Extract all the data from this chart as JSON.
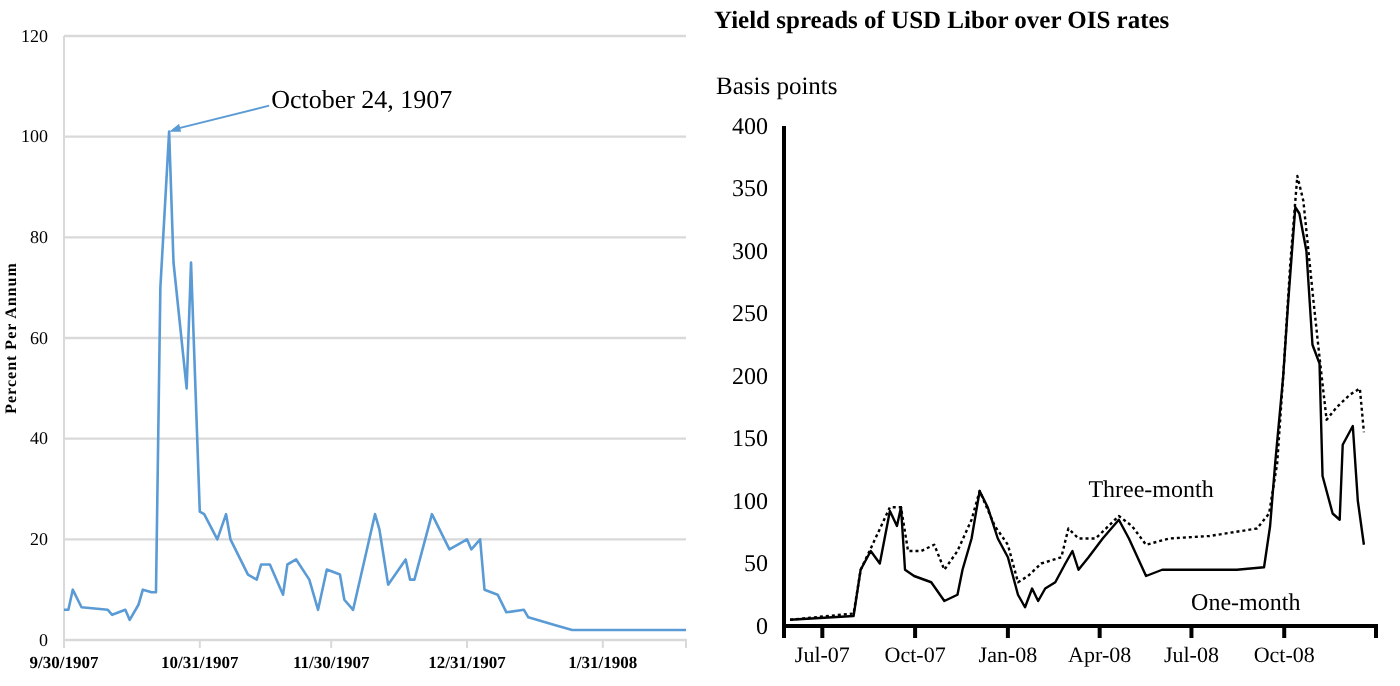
{
  "chart_data": [
    {
      "type": "line",
      "ylabel": "Percent Per Annum",
      "x": [
        "1907-09-30",
        "1907-10-01",
        "1907-10-02",
        "1907-10-04",
        "1907-10-10",
        "1907-10-11",
        "1907-10-14",
        "1907-10-15",
        "1907-10-17",
        "1907-10-18",
        "1907-10-20",
        "1907-10-21",
        "1907-10-22",
        "1907-10-24",
        "1907-10-25",
        "1907-10-28",
        "1907-10-29",
        "1907-10-31",
        "1907-11-01",
        "1907-11-04",
        "1907-11-06",
        "1907-11-07",
        "1907-11-11",
        "1907-11-13",
        "1907-11-14",
        "1907-11-16",
        "1907-11-19",
        "1907-11-20",
        "1907-11-22",
        "1907-11-25",
        "1907-11-27",
        "1907-11-29",
        "1907-12-02",
        "1907-12-03",
        "1907-12-05",
        "1907-12-10",
        "1907-12-11",
        "1907-12-13",
        "1907-12-17",
        "1907-12-18",
        "1907-12-19",
        "1907-12-23",
        "1907-12-27",
        "1907-12-31",
        "1908-01-01",
        "1908-01-03",
        "1908-01-04",
        "1908-01-07",
        "1908-01-09",
        "1908-01-13",
        "1908-01-14",
        "1908-01-20",
        "1908-01-24",
        "1908-02-19"
      ],
      "series": [
        {
          "color": "#5b9bd5",
          "values": [
            6,
            6,
            10,
            6.5,
            6,
            5,
            6,
            4,
            7,
            10,
            9.5,
            9.5,
            70,
            101,
            75,
            50,
            75,
            25.5,
            25,
            20,
            25,
            20,
            13,
            12,
            15,
            15,
            9,
            15,
            16,
            12,
            6,
            14,
            13,
            8,
            6,
            25,
            22,
            11,
            16,
            12,
            12,
            25,
            18,
            20,
            18,
            20,
            10,
            9,
            5.5,
            6,
            4.5,
            3,
            2,
            2
          ]
        }
      ],
      "xlim": [
        "1907-09-30",
        "1908-02-19"
      ],
      "xticks": [
        {
          "value": "1907-09-30",
          "label": "9/30/1907"
        },
        {
          "value": "1907-10-31",
          "label": "10/31/1907"
        },
        {
          "value": "1907-11-30",
          "label": "11/30/1907"
        },
        {
          "value": "1907-12-31",
          "label": "12/31/1907"
        },
        {
          "value": "1908-01-31",
          "label": "1/31/1908"
        }
      ],
      "ylim": [
        0,
        120
      ],
      "yticks": [
        0,
        20,
        40,
        60,
        80,
        100,
        120
      ],
      "grid": "y",
      "annotations": [
        {
          "text": "October 24, 1907",
          "x": "1907-10-24",
          "y": 101
        }
      ]
    },
    {
      "type": "line",
      "title": "Yield spreads of USD Libor over OIS rates",
      "ylabel": "Basis points",
      "series": [
        {
          "name": "One-month",
          "color": "#000000",
          "line_style": "solid",
          "x": [
            "2007-05-30",
            "2007-08-01",
            "2007-08-08",
            "2007-08-18",
            "2007-08-27",
            "2007-09-06",
            "2007-09-13",
            "2007-09-17",
            "2007-09-21",
            "2007-09-30",
            "2007-10-17",
            "2007-10-30",
            "2007-11-12",
            "2007-11-17",
            "2007-11-26",
            "2007-12-04",
            "2007-12-12",
            "2007-12-22",
            "2008-01-01",
            "2008-01-11",
            "2008-01-18",
            "2008-01-25",
            "2008-01-31",
            "2008-02-07",
            "2008-02-17",
            "2008-02-27",
            "2008-03-05",
            "2008-03-11",
            "2008-03-21",
            "2008-04-04",
            "2008-04-20",
            "2008-04-30",
            "2008-05-17",
            "2008-06-02",
            "2008-08-15",
            "2008-09-11",
            "2008-09-17",
            "2008-09-22",
            "2008-09-30",
            "2008-10-05",
            "2008-10-12",
            "2008-10-16",
            "2008-10-23",
            "2008-10-29",
            "2008-11-05",
            "2008-11-08",
            "2008-11-18",
            "2008-11-25",
            "2008-11-28",
            "2008-12-08",
            "2008-12-13",
            "2008-12-19"
          ],
          "values": [
            5,
            8,
            45,
            60,
            50,
            92,
            80,
            95,
            45,
            40,
            35,
            20,
            25,
            45,
            70,
            108,
            95,
            70,
            55,
            25,
            15,
            30,
            20,
            30,
            35,
            50,
            60,
            45,
            55,
            70,
            85,
            70,
            40,
            45,
            45,
            47,
            80,
            130,
            200,
            260,
            335,
            330,
            300,
            225,
            210,
            120,
            90,
            85,
            145,
            160,
            100,
            65
          ]
        },
        {
          "name": "Three-month",
          "color": "#000000",
          "line_style": "dotted",
          "x": [
            "2007-05-30",
            "2007-08-01",
            "2007-08-08",
            "2007-08-18",
            "2007-09-06",
            "2007-09-17",
            "2007-09-24",
            "2007-10-07",
            "2007-10-20",
            "2007-10-30",
            "2007-11-12",
            "2007-11-26",
            "2007-12-04",
            "2007-12-19",
            "2008-01-01",
            "2008-01-11",
            "2008-01-21",
            "2008-02-03",
            "2008-02-23",
            "2008-03-01",
            "2008-03-11",
            "2008-03-28",
            "2008-04-20",
            "2008-05-03",
            "2008-05-17",
            "2008-06-09",
            "2008-07-19",
            "2008-09-04",
            "2008-09-16",
            "2008-09-24",
            "2008-09-30",
            "2008-10-07",
            "2008-10-14",
            "2008-10-20",
            "2008-10-30",
            "2008-11-05",
            "2008-11-12",
            "2008-11-22",
            "2008-12-05",
            "2008-12-15",
            "2008-12-19"
          ],
          "values": [
            5,
            10,
            45,
            62,
            95,
            95,
            60,
            60,
            65,
            45,
            60,
            85,
            108,
            80,
            65,
            35,
            40,
            50,
            55,
            78,
            70,
            70,
            88,
            80,
            65,
            70,
            72,
            78,
            90,
            130,
            200,
            290,
            360,
            340,
            260,
            215,
            165,
            175,
            185,
            190,
            155
          ]
        }
      ],
      "xlim": [
        "2007-05-24",
        "2008-12-31"
      ],
      "xticks": [
        {
          "value": "2007-07-01",
          "label": "Jul-07"
        },
        {
          "value": "2007-10-01",
          "label": "Oct-07"
        },
        {
          "value": "2008-01-01",
          "label": "Jan-08"
        },
        {
          "value": "2008-04-01",
          "label": "Apr-08"
        },
        {
          "value": "2008-07-01",
          "label": "Jul-08"
        },
        {
          "value": "2008-10-01",
          "label": "Oct-08"
        }
      ],
      "ylim": [
        0,
        400
      ],
      "yticks": [
        0,
        50,
        100,
        150,
        200,
        250,
        300,
        350,
        400
      ],
      "grid": false
    }
  ]
}
